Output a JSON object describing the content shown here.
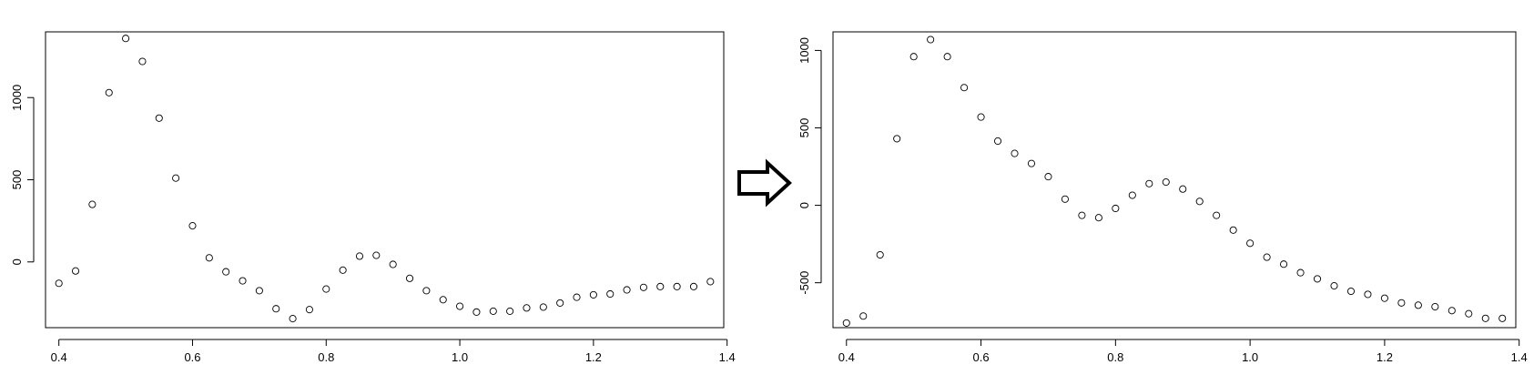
{
  "chart_data": [
    {
      "type": "scatter",
      "title": "",
      "xlabel": "",
      "ylabel": "",
      "xlim": [
        0.38,
        1.395
      ],
      "ylim": [
        -400,
        1400
      ],
      "grid": false,
      "x_ticks": [
        0.4,
        0.6,
        0.8,
        1.0,
        1.2,
        1.4
      ],
      "x_tick_labels": [
        "0.4",
        "0.6",
        "0.8",
        "1.0",
        "1.2",
        "1.4"
      ],
      "y_ticks": [
        0,
        500,
        1000
      ],
      "y_tick_labels": [
        "0",
        "500",
        "1000"
      ],
      "x": [
        0.4,
        0.425,
        0.45,
        0.475,
        0.5,
        0.525,
        0.55,
        0.575,
        0.6,
        0.625,
        0.65,
        0.675,
        0.7,
        0.725,
        0.75,
        0.775,
        0.8,
        0.825,
        0.85,
        0.875,
        0.9,
        0.925,
        0.95,
        0.975,
        1.0,
        1.025,
        1.05,
        1.075,
        1.1,
        1.125,
        1.15,
        1.175,
        1.2,
        1.225,
        1.25,
        1.275,
        1.3,
        1.325,
        1.35,
        1.375
      ],
      "y": [
        -130,
        -55,
        350,
        1030,
        1360,
        1220,
        875,
        510,
        220,
        25,
        -60,
        -115,
        -175,
        -285,
        -345,
        -290,
        -165,
        -50,
        35,
        40,
        -15,
        -100,
        -175,
        -230,
        -270,
        -305,
        -300,
        -300,
        -280,
        -275,
        -250,
        -215,
        -200,
        -195,
        -170,
        -155,
        -150,
        -150,
        -150,
        -120
      ]
    },
    {
      "type": "scatter",
      "title": "",
      "xlabel": "",
      "ylabel": "",
      "xlim": [
        0.38,
        1.395
      ],
      "ylim": [
        -790,
        1120
      ],
      "grid": false,
      "x_ticks": [
        0.4,
        0.6,
        0.8,
        1.0,
        1.2,
        1.4
      ],
      "x_tick_labels": [
        "0.4",
        "0.6",
        "0.8",
        "1.0",
        "1.2",
        "1.4"
      ],
      "y_ticks": [
        -500,
        0,
        500,
        1000
      ],
      "y_tick_labels": [
        "-500",
        "0",
        "500",
        "1000"
      ],
      "x": [
        0.4,
        0.425,
        0.45,
        0.475,
        0.5,
        0.525,
        0.55,
        0.575,
        0.6,
        0.625,
        0.65,
        0.675,
        0.7,
        0.725,
        0.75,
        0.775,
        0.8,
        0.825,
        0.85,
        0.875,
        0.9,
        0.925,
        0.95,
        0.975,
        1.0,
        1.025,
        1.05,
        1.075,
        1.1,
        1.125,
        1.15,
        1.175,
        1.2,
        1.225,
        1.25,
        1.275,
        1.3,
        1.325,
        1.35,
        1.375
      ],
      "y": [
        -760,
        -715,
        -320,
        430,
        960,
        1070,
        960,
        760,
        570,
        415,
        335,
        270,
        185,
        40,
        -65,
        -80,
        -20,
        65,
        140,
        150,
        105,
        25,
        -65,
        -160,
        -245,
        -335,
        -380,
        -435,
        -475,
        -520,
        -555,
        -575,
        -600,
        -630,
        -645,
        -655,
        -680,
        -700,
        -730,
        -730
      ]
    }
  ],
  "arrow": {
    "icon": "right-arrow-icon",
    "color": "#000000"
  }
}
